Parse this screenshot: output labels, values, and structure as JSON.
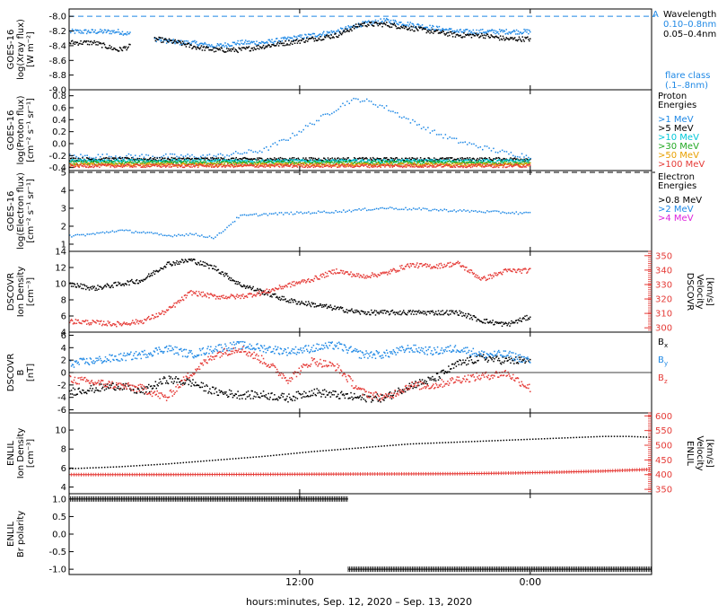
{
  "colors": {
    "black": "#000000",
    "blue": "#1e88e5",
    "cyan": "#00c8d8",
    "green": "#22a822",
    "orange": "#e8a000",
    "red": "#e53935",
    "magenta": "#dd22dd",
    "flare": "#1e88e5"
  },
  "x_axis": {
    "label": "hours:minutes, Sep. 12, 2020 – Sep. 13, 2020",
    "range_hours": [
      0,
      24
    ],
    "ticks": [
      {
        "hour": 9.5,
        "label": "12:00"
      },
      {
        "hour": 19.0,
        "label": "0:00"
      }
    ]
  },
  "chart_data": [
    {
      "type": "scatter",
      "id": "xray",
      "ylabel": [
        "GOES-16",
        "log(Xray flux)",
        "[W m⁻²]"
      ],
      "ylim": [
        -9.0,
        -7.9
      ],
      "yticks": [
        -8.0,
        -8.2,
        -8.4,
        -8.6,
        -8.8,
        -9.0
      ],
      "ytick_labels": [
        "-8.0",
        "-8.2",
        "-8.4",
        "-8.6",
        "-8.8",
        "-9.0"
      ],
      "reference_line": -8.0,
      "legend_title": "Wavelength",
      "legend_marker": "A",
      "series": [
        {
          "name": "0.10–0.8nm",
          "color": "blue",
          "gaps": [
            [
              2.5,
              3.5
            ],
            [
              19.0,
              24.0
            ]
          ],
          "x": [
            0,
            1,
            2,
            3.5,
            4.5,
            5,
            6,
            7,
            8,
            9,
            10,
            11,
            12,
            13,
            14,
            15,
            16,
            17,
            18,
            19
          ],
          "y": [
            -8.2,
            -8.2,
            -8.2,
            -8.3,
            -8.35,
            -8.35,
            -8.4,
            -8.35,
            -8.35,
            -8.3,
            -8.25,
            -8.2,
            -8.1,
            -8.05,
            -8.1,
            -8.15,
            -8.2,
            -8.2,
            -8.2,
            -8.2
          ]
        },
        {
          "name": "0.05–0.4nm",
          "color": "black",
          "gaps": [
            [
              2.5,
              3.5
            ],
            [
              19.0,
              24.0
            ]
          ],
          "x": [
            0,
            1,
            2,
            3.5,
            4.5,
            5,
            6,
            7,
            8,
            9,
            10,
            11,
            12,
            13,
            14,
            15,
            16,
            17,
            18,
            19
          ],
          "y": [
            -8.35,
            -8.35,
            -8.45,
            -8.3,
            -8.35,
            -8.4,
            -8.45,
            -8.45,
            -8.4,
            -8.35,
            -8.3,
            -8.25,
            -8.1,
            -8.1,
            -8.15,
            -8.2,
            -8.25,
            -8.25,
            -8.3,
            -8.3
          ]
        }
      ],
      "annotation": [
        "flare class",
        "(.1–.8nm)"
      ]
    },
    {
      "type": "scatter",
      "id": "proton",
      "ylabel": [
        "GOES-16",
        "log(Proton flux)",
        "[cm⁻² s⁻¹ sr⁻¹]"
      ],
      "ylim": [
        -0.45,
        0.9
      ],
      "yticks": [
        0.8,
        0.6,
        0.4,
        0.2,
        0.0,
        -0.2,
        -0.4
      ],
      "ytick_labels": [
        "0.8",
        "0.6",
        "0.4",
        "0.2",
        "0.0",
        "-0.2",
        "-0.4"
      ],
      "legend_title": [
        "Proton",
        "Energies"
      ],
      "series": [
        {
          "name": ">1 MeV",
          "color": "blue",
          "x": [
            0,
            2,
            4,
            6,
            8,
            9,
            10,
            11,
            11.5,
            12,
            13,
            14,
            15,
            16,
            17,
            18,
            19
          ],
          "y": [
            -0.2,
            -0.2,
            -0.2,
            -0.2,
            -0.1,
            0.1,
            0.35,
            0.6,
            0.72,
            0.75,
            0.62,
            0.4,
            0.2,
            0.05,
            -0.05,
            -0.15,
            -0.2
          ]
        },
        {
          "name": ">5 MeV",
          "color": "black",
          "x": [
            0,
            19
          ],
          "y": [
            -0.25,
            -0.25
          ]
        },
        {
          "name": ">10 MeV",
          "color": "cyan",
          "x": [
            0,
            19
          ],
          "y": [
            -0.28,
            -0.28
          ]
        },
        {
          "name": ">30 MeV",
          "color": "green",
          "x": [
            0,
            19
          ],
          "y": [
            -0.31,
            -0.31
          ]
        },
        {
          "name": ">50 MeV",
          "color": "orange",
          "x": [
            0,
            19
          ],
          "y": [
            -0.34,
            -0.34
          ]
        },
        {
          "name": ">100 MeV",
          "color": "red",
          "x": [
            0,
            19
          ],
          "y": [
            -0.36,
            -0.36
          ]
        }
      ]
    },
    {
      "type": "scatter",
      "id": "electron",
      "ylabel": [
        "GOES-16",
        "log(Electron flux)",
        "[cm⁻² s⁻¹ sr⁻¹]"
      ],
      "ylim": [
        0.6,
        5.1
      ],
      "yticks": [
        5,
        4,
        3,
        2,
        1
      ],
      "ytick_labels": [
        "5",
        "4",
        "3",
        "2",
        "1"
      ],
      "reference_line": 5,
      "legend_title": [
        "Electron",
        "Energies"
      ],
      "series": [
        {
          "name": ">0.8 MeV",
          "color": "black",
          "x": [],
          "y": []
        },
        {
          "name": ">2 MeV",
          "color": "blue",
          "x": [
            0,
            1,
            2,
            3,
            4,
            5,
            6,
            7,
            8,
            9,
            10,
            11,
            12,
            13,
            14,
            15,
            16,
            17,
            18,
            19
          ],
          "y": [
            1.5,
            1.6,
            1.8,
            1.7,
            1.5,
            1.6,
            1.4,
            2.6,
            2.7,
            2.75,
            2.8,
            2.85,
            2.95,
            3.05,
            3.0,
            2.95,
            2.9,
            2.85,
            2.8,
            2.75
          ]
        },
        {
          "name": ">4 MeV",
          "color": "magenta",
          "x": [],
          "y": []
        }
      ]
    },
    {
      "type": "scatter",
      "id": "dscovr-density",
      "ylabel": [
        "DSCOVR",
        "Ion Density",
        "[cm⁻³]"
      ],
      "ylim": [
        4,
        14
      ],
      "yticks": [
        14,
        12,
        10,
        8,
        6,
        4
      ],
      "ytick_labels": [
        "14",
        "12",
        "10",
        "8",
        "6",
        "4"
      ],
      "right_axis": {
        "ylabel": [
          "DSCOVR",
          "Velocity",
          "[km/s]"
        ],
        "ylim": [
          297,
          353
        ],
        "yticks": [
          350,
          340,
          330,
          320,
          310,
          300
        ],
        "ytick_labels": [
          "350",
          "340",
          "330",
          "320",
          "310",
          "300"
        ],
        "color": "red"
      },
      "series": [
        {
          "name": "Ion Density",
          "color": "black",
          "axis": "left",
          "x": [
            0,
            1,
            2,
            3,
            4,
            5,
            6,
            7,
            8,
            9,
            10,
            11,
            12,
            13,
            14,
            15,
            16,
            17,
            18,
            19
          ],
          "y": [
            10,
            9.5,
            10,
            10.5,
            12.5,
            13,
            12,
            10,
            9,
            8,
            7.5,
            7,
            6.5,
            6.5,
            6.5,
            6.5,
            6.5,
            5.5,
            5,
            6
          ]
        },
        {
          "name": "Velocity",
          "color": "red",
          "axis": "right",
          "x": [
            0,
            1,
            2,
            3,
            4,
            5,
            6,
            7,
            8,
            9,
            10,
            11,
            12,
            13,
            14,
            15,
            16,
            17,
            18,
            19
          ],
          "y": [
            305,
            304,
            303,
            305,
            312,
            325,
            322,
            322,
            325,
            330,
            334,
            340,
            336,
            338,
            344,
            343,
            345,
            334,
            340,
            340
          ]
        }
      ]
    },
    {
      "type": "scatter",
      "id": "dscovr-b",
      "ylabel": [
        "DSCOVR",
        "B",
        "[nT]"
      ],
      "ylim": [
        -6.5,
        6.5
      ],
      "yticks": [
        6,
        4,
        2,
        0,
        -2,
        -4,
        -6
      ],
      "ytick_labels": [
        "6",
        "4",
        "2",
        "0",
        "-2",
        "-4",
        "-6"
      ],
      "zero_line": 0,
      "series": [
        {
          "name": "Bx",
          "color": "black",
          "x": [
            0,
            1,
            2,
            3,
            4,
            5,
            6,
            7,
            8,
            9,
            10,
            11,
            12,
            13,
            14,
            15,
            16,
            17,
            18,
            19
          ],
          "y": [
            -3,
            -2.5,
            -2,
            -3,
            -1,
            -1.5,
            -3,
            -3.5,
            -3.5,
            -4,
            -3,
            -3.5,
            -4,
            -4,
            -2,
            -1,
            1.5,
            2.5,
            2,
            2
          ]
        },
        {
          "name": "By",
          "color": "blue",
          "x": [
            0,
            1,
            2,
            3,
            4,
            5,
            6,
            7,
            8,
            9,
            10,
            11,
            12,
            13,
            14,
            15,
            16,
            17,
            18,
            19
          ],
          "y": [
            1.5,
            2,
            2.5,
            3,
            4,
            3,
            4,
            4.5,
            4,
            3.5,
            4,
            4.5,
            3,
            3,
            4,
            3.5,
            4,
            3,
            3,
            2
          ]
        },
        {
          "name": "Bz",
          "color": "red",
          "x": [
            0,
            1,
            2,
            3,
            4,
            5,
            6,
            7,
            8,
            9,
            10,
            11,
            12,
            13,
            14,
            15,
            16,
            17,
            18,
            19
          ],
          "y": [
            -1,
            -1.5,
            -2,
            -2.5,
            -4,
            0,
            3,
            4,
            2,
            -1,
            2,
            1,
            -3,
            -4,
            -2,
            -2,
            -1,
            -0.5,
            0,
            -2.5
          ]
        }
      ],
      "legend_labels": [
        "B",
        "B",
        "B"
      ],
      "legend_subscripts": [
        "x",
        "y",
        "z"
      ]
    },
    {
      "type": "scatter",
      "id": "enlil-density",
      "ylabel": [
        "ENLIL",
        "Ion Density",
        "[cm⁻³]"
      ],
      "ylim": [
        3.3,
        11.8
      ],
      "yticks": [
        10,
        8,
        6,
        4
      ],
      "ytick_labels": [
        "10",
        "8",
        "6",
        "4"
      ],
      "right_axis": {
        "ylabel": [
          "ENLIL",
          "Velocity",
          "[km/s]"
        ],
        "ylim": [
          335,
          610
        ],
        "yticks": [
          600,
          550,
          500,
          450,
          400,
          350
        ],
        "ytick_labels": [
          "600",
          "550",
          "500",
          "450",
          "400",
          "350"
        ],
        "color": "red"
      },
      "series": [
        {
          "name": "Ion Density",
          "color": "black",
          "axis": "left",
          "x": [
            0,
            2,
            4,
            6,
            8,
            10,
            12,
            14,
            16,
            18,
            19,
            20,
            21,
            22,
            23,
            24
          ],
          "y": [
            6.0,
            6.2,
            6.5,
            6.9,
            7.3,
            7.8,
            8.2,
            8.6,
            8.8,
            9.0,
            9.1,
            9.2,
            9.3,
            9.4,
            9.4,
            9.3
          ]
        },
        {
          "name": "Velocity",
          "color": "red",
          "axis": "right",
          "x": [
            0,
            4,
            8,
            12,
            16,
            18,
            20,
            22,
            24
          ],
          "y": [
            400,
            400,
            401,
            402,
            403,
            405,
            408,
            412,
            418
          ]
        }
      ]
    },
    {
      "type": "scatter",
      "id": "enlil-polarity",
      "ylabel": [
        "ENLIL",
        "Br polarity"
      ],
      "ylabel_sub": "r",
      "ylim": [
        -1.15,
        1.15
      ],
      "yticks": [
        1.0,
        0.5,
        0.0,
        -0.5,
        -1.0
      ],
      "ytick_labels": [
        "1.0",
        "0.5",
        "0.0",
        "-0.5",
        "-1.0"
      ],
      "series": [
        {
          "name": "Br polarity",
          "color": "black",
          "segments": [
            {
              "x0": 0,
              "x1": 11.5,
              "y": 1.0
            },
            {
              "x0": 11.5,
              "x1": 24,
              "y": -1.0
            }
          ]
        }
      ]
    }
  ]
}
